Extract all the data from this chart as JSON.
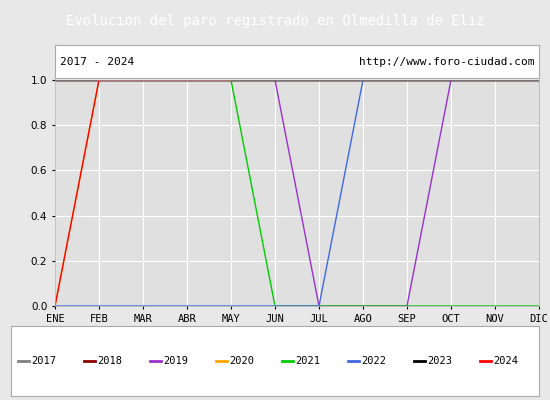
{
  "title": "Evolucion del paro registrado en Olmedilla de Eliz",
  "title_bgcolor": "#5b9bd5",
  "subtitle_left": "2017 - 2024",
  "subtitle_right": "http://www.foro-ciudad.com",
  "xlabel_months": [
    "ENE",
    "FEB",
    "MAR",
    "ABR",
    "MAY",
    "JUN",
    "JUL",
    "AGO",
    "SEP",
    "OCT",
    "NOV",
    "DIC"
  ],
  "ylim": [
    0.0,
    1.0
  ],
  "yticks": [
    0.0,
    0.2,
    0.4,
    0.6,
    0.8,
    1.0
  ],
  "years": [
    "2017",
    "2018",
    "2019",
    "2020",
    "2021",
    "2022",
    "2023",
    "2024"
  ],
  "colors": {
    "2017": "#808080",
    "2018": "#8B0000",
    "2019": "#9932CC",
    "2020": "#FFA500",
    "2021": "#00CC00",
    "2022": "#4169E1",
    "2023": "#000000",
    "2024": "#FF0000"
  },
  "data": {
    "2017": [
      1,
      1,
      1,
      1,
      1,
      1,
      1,
      1,
      1,
      1,
      1,
      1
    ],
    "2018": [
      1,
      1,
      1,
      1,
      1,
      1,
      1,
      1,
      1,
      1,
      1,
      1
    ],
    "2019": [
      1,
      1,
      1,
      1,
      1,
      1,
      0,
      0,
      0,
      1,
      1,
      1
    ],
    "2020": [
      0,
      1,
      1,
      1,
      1,
      1,
      1,
      1,
      1,
      1,
      1,
      1
    ],
    "2021": [
      1,
      1,
      1,
      1,
      1,
      0,
      0,
      0,
      0,
      0,
      0,
      0
    ],
    "2022": [
      0,
      0,
      0,
      0,
      0,
      0,
      0,
      1,
      1,
      1,
      1,
      1
    ],
    "2023": [
      1,
      1,
      1,
      1,
      1,
      1,
      1,
      1,
      1,
      1,
      1,
      1
    ],
    "2024": [
      0,
      1,
      1,
      1,
      1,
      null,
      null,
      null,
      null,
      null,
      null,
      null
    ]
  },
  "background_color": "#e8e8e8",
  "plot_bgcolor": "#e0e0e0",
  "grid_color": "#ffffff",
  "figsize": [
    5.5,
    4.0
  ],
  "dpi": 100
}
